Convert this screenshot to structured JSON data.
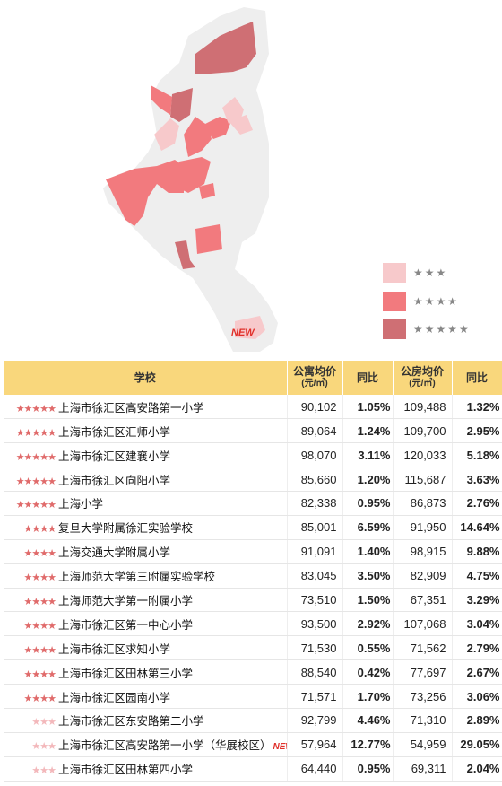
{
  "map": {
    "legend": [
      {
        "stars": "★★★",
        "color": "#f7c9cb"
      },
      {
        "stars": "★★★★",
        "color": "#f27a7e"
      },
      {
        "stars": "★★★★★",
        "color": "#cf6f74"
      }
    ],
    "new_label": "NEW"
  },
  "table": {
    "headers": {
      "school": "学校",
      "apt_price": "公寓均价",
      "apt_unit": "(元/㎡)",
      "apt_yoy": "同比",
      "pub_price": "公房均价",
      "pub_unit": "(元/㎡)",
      "pub_yoy": "同比"
    },
    "rows": [
      {
        "stars": "★★★★★",
        "rating": 5,
        "name": "上海市徐汇区高安路第一小学",
        "apt": "90,102",
        "apt_yoy": "1.05%",
        "pub": "109,488",
        "pub_yoy": "1.32%"
      },
      {
        "stars": "★★★★★",
        "rating": 5,
        "name": "上海市徐汇区汇师小学",
        "apt": "89,064",
        "apt_yoy": "1.24%",
        "pub": "109,700",
        "pub_yoy": "2.95%"
      },
      {
        "stars": "★★★★★",
        "rating": 5,
        "name": "上海市徐汇区建襄小学",
        "apt": "98,070",
        "apt_yoy": "3.11%",
        "pub": "120,033",
        "pub_yoy": "5.18%"
      },
      {
        "stars": "★★★★★",
        "rating": 5,
        "name": "上海市徐汇区向阳小学",
        "apt": "85,660",
        "apt_yoy": "1.20%",
        "pub": "115,687",
        "pub_yoy": "3.63%"
      },
      {
        "stars": "★★★★★",
        "rating": 5,
        "name": "上海小学",
        "apt": "82,338",
        "apt_yoy": "0.95%",
        "pub": "86,873",
        "pub_yoy": "2.76%"
      },
      {
        "stars": "★★★★",
        "rating": 4,
        "name": "复旦大学附属徐汇实验学校",
        "apt": "85,001",
        "apt_yoy": "6.59%",
        "pub": "91,950",
        "pub_yoy": "14.64%"
      },
      {
        "stars": "★★★★",
        "rating": 4,
        "name": "上海交通大学附属小学",
        "apt": "91,091",
        "apt_yoy": "1.40%",
        "pub": "98,915",
        "pub_yoy": "9.88%"
      },
      {
        "stars": "★★★★",
        "rating": 4,
        "name": "上海师范大学第三附属实验学校",
        "apt": "83,045",
        "apt_yoy": "3.50%",
        "pub": "82,909",
        "pub_yoy": "4.75%"
      },
      {
        "stars": "★★★★",
        "rating": 4,
        "name": "上海师范大学第一附属小学",
        "apt": "73,510",
        "apt_yoy": "1.50%",
        "pub": "67,351",
        "pub_yoy": "3.29%"
      },
      {
        "stars": "★★★★",
        "rating": 4,
        "name": "上海市徐汇区第一中心小学",
        "apt": "93,500",
        "apt_yoy": "2.92%",
        "pub": "107,068",
        "pub_yoy": "3.04%"
      },
      {
        "stars": "★★★★",
        "rating": 4,
        "name": "上海市徐汇区求知小学",
        "apt": "71,530",
        "apt_yoy": "0.55%",
        "pub": "71,562",
        "pub_yoy": "2.79%"
      },
      {
        "stars": "★★★★",
        "rating": 4,
        "name": "上海市徐汇区田林第三小学",
        "apt": "88,540",
        "apt_yoy": "0.42%",
        "pub": "77,697",
        "pub_yoy": "2.67%"
      },
      {
        "stars": "★★★★",
        "rating": 4,
        "name": "上海市徐汇区园南小学",
        "apt": "71,571",
        "apt_yoy": "1.70%",
        "pub": "73,256",
        "pub_yoy": "3.06%"
      },
      {
        "stars": "★★★",
        "rating": 3,
        "name": "上海市徐汇区东安路第二小学",
        "apt": "92,799",
        "apt_yoy": "4.46%",
        "pub": "71,310",
        "pub_yoy": "2.89%"
      },
      {
        "stars": "★★★",
        "rating": 3,
        "name": "上海市徐汇区高安路第一小学（华展校区）",
        "new": "NEW",
        "apt": "57,964",
        "apt_yoy": "12.77%",
        "pub": "54,959",
        "pub_yoy": "29.05%"
      },
      {
        "stars": "★★★",
        "rating": 3,
        "name": "上海市徐汇区田林第四小学",
        "apt": "64,440",
        "apt_yoy": "0.95%",
        "pub": "69,311",
        "pub_yoy": "2.04%"
      }
    ]
  }
}
